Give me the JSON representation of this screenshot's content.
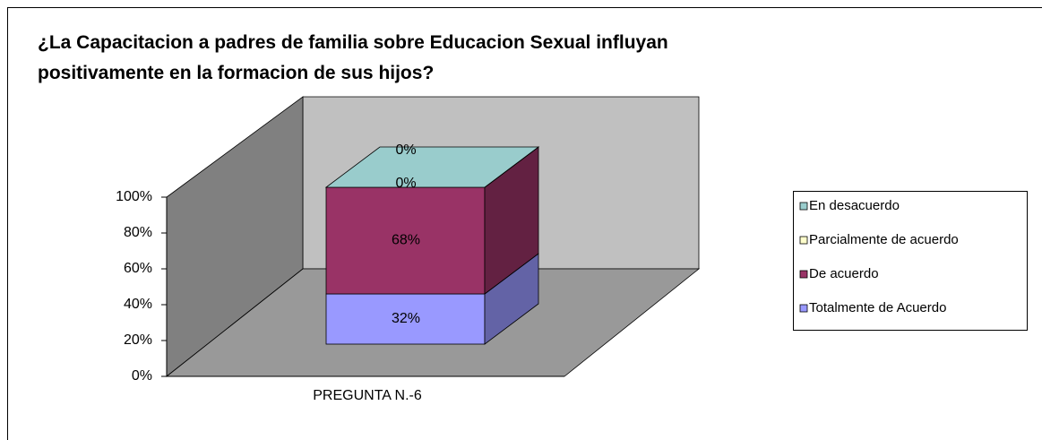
{
  "chart_data": {
    "type": "bar3d_stacked",
    "title": "¿La Capacitacion a padres de familia sobre Educacion Sexual influyan positivamente en la formacion de sus hijos?",
    "categories": [
      "PREGUNTA N.-6"
    ],
    "series": [
      {
        "name": "Totalmente de Acuerdo",
        "color": "#9999ff",
        "values": [
          32
        ],
        "value_labels": [
          "32%"
        ]
      },
      {
        "name": "De acuerdo",
        "color": "#993366",
        "values": [
          68
        ],
        "value_labels": [
          "68%"
        ]
      },
      {
        "name": "Parcialmente de acuerdo",
        "color": "#ffffcc",
        "values": [
          0
        ],
        "value_labels": [
          "0%"
        ]
      },
      {
        "name": "En desacuerdo",
        "color": "#99cccc",
        "values": [
          0
        ],
        "value_labels": [
          "0%"
        ]
      }
    ],
    "ylim": [
      0,
      100
    ],
    "yticks": [
      {
        "value": 0,
        "label": "0%"
      },
      {
        "value": 20,
        "label": "20%"
      },
      {
        "value": 40,
        "label": "40%"
      },
      {
        "value": 60,
        "label": "60%"
      },
      {
        "value": 80,
        "label": "80%"
      },
      {
        "value": 100,
        "label": "100%"
      }
    ],
    "legend": "right"
  }
}
